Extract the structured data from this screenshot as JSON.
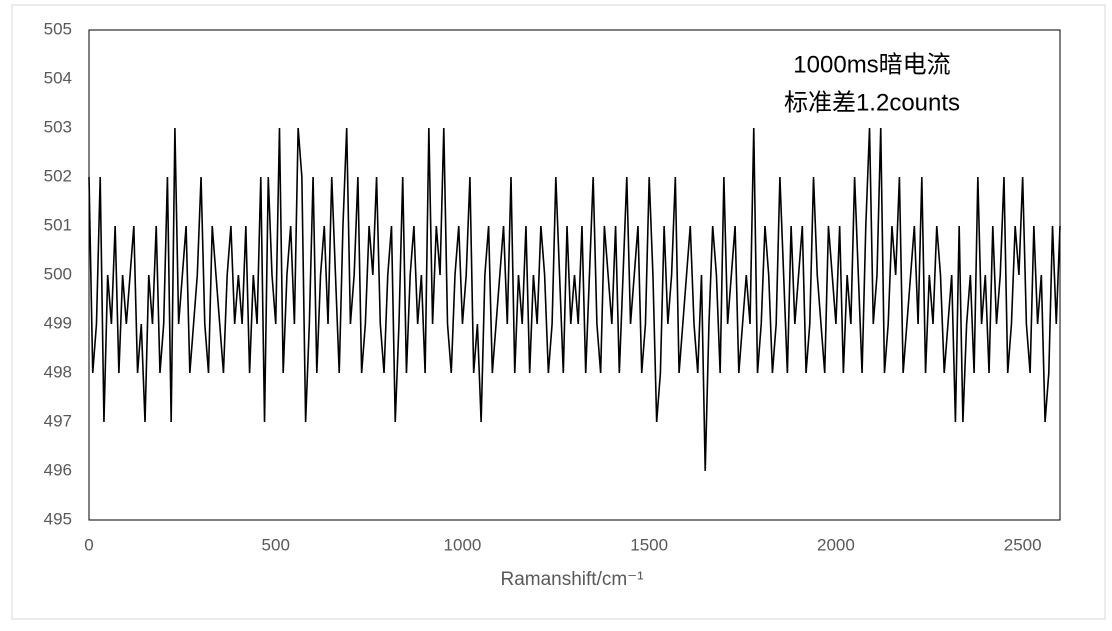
{
  "chart_data": {
    "type": "line",
    "annotations": [
      "1000ms暗电流",
      "标准差1.2counts"
    ],
    "x_label": "Ramanshift/cm⁻¹",
    "color": "#000000",
    "xlim": [
      0,
      2600
    ],
    "xticks": [
      0,
      500,
      1000,
      1500,
      2000,
      2500
    ],
    "ylim": [
      495,
      505
    ],
    "yticks": [
      495,
      496,
      497,
      498,
      499,
      500,
      501,
      502,
      503,
      504,
      505
    ],
    "x": [
      0,
      10,
      20,
      30,
      40,
      50,
      60,
      70,
      80,
      90,
      100,
      110,
      120,
      130,
      140,
      150,
      160,
      170,
      180,
      190,
      200,
      210,
      220,
      230,
      240,
      250,
      260,
      270,
      280,
      290,
      300,
      310,
      320,
      330,
      340,
      350,
      360,
      370,
      380,
      390,
      400,
      410,
      420,
      430,
      440,
      450,
      460,
      470,
      480,
      490,
      500,
      510,
      520,
      530,
      540,
      550,
      560,
      570,
      580,
      590,
      600,
      610,
      620,
      630,
      640,
      650,
      660,
      670,
      680,
      690,
      700,
      710,
      720,
      730,
      740,
      750,
      760,
      770,
      780,
      790,
      800,
      810,
      820,
      830,
      840,
      850,
      860,
      870,
      880,
      890,
      900,
      910,
      920,
      930,
      940,
      950,
      960,
      970,
      980,
      990,
      1000,
      1010,
      1020,
      1030,
      1040,
      1050,
      1060,
      1070,
      1080,
      1090,
      1100,
      1110,
      1120,
      1130,
      1140,
      1150,
      1160,
      1170,
      1180,
      1190,
      1200,
      1210,
      1220,
      1230,
      1240,
      1250,
      1260,
      1270,
      1280,
      1290,
      1300,
      1310,
      1320,
      1330,
      1340,
      1350,
      1360,
      1370,
      1380,
      1390,
      1400,
      1410,
      1420,
      1430,
      1440,
      1450,
      1460,
      1470,
      1480,
      1490,
      1500,
      1510,
      1520,
      1530,
      1540,
      1550,
      1560,
      1570,
      1580,
      1590,
      1600,
      1610,
      1620,
      1630,
      1640,
      1650,
      1660,
      1670,
      1680,
      1690,
      1700,
      1710,
      1720,
      1730,
      1740,
      1750,
      1760,
      1770,
      1780,
      1790,
      1800,
      1810,
      1820,
      1830,
      1840,
      1850,
      1860,
      1870,
      1880,
      1890,
      1900,
      1910,
      1920,
      1930,
      1940,
      1950,
      1960,
      1970,
      1980,
      1990,
      2000,
      2010,
      2020,
      2030,
      2040,
      2050,
      2060,
      2070,
      2080,
      2090,
      2100,
      2110,
      2120,
      2130,
      2140,
      2150,
      2160,
      2170,
      2180,
      2190,
      2200,
      2210,
      2220,
      2230,
      2240,
      2250,
      2260,
      2270,
      2280,
      2290,
      2300,
      2310,
      2320,
      2330,
      2340,
      2350,
      2360,
      2370,
      2380,
      2390,
      2400,
      2410,
      2420,
      2430,
      2440,
      2450,
      2460,
      2470,
      2480,
      2490,
      2500,
      2510,
      2520,
      2530,
      2540,
      2550,
      2560,
      2570,
      2580,
      2590,
      2600
    ],
    "values": [
      502,
      498,
      499,
      502,
      497,
      500,
      499,
      501,
      498,
      500,
      499,
      500,
      501,
      498,
      499,
      497,
      500,
      499,
      501,
      498,
      499,
      502,
      497,
      503,
      499,
      500,
      501,
      498,
      499,
      500,
      502,
      499,
      498,
      501,
      500,
      499,
      498,
      500,
      501,
      499,
      500,
      499,
      501,
      498,
      500,
      499,
      502,
      497,
      502,
      500,
      499,
      503,
      498,
      500,
      501,
      499,
      503,
      502,
      497,
      499,
      502,
      498,
      500,
      501,
      499,
      502,
      500,
      498,
      501,
      503,
      499,
      500,
      502,
      498,
      499,
      501,
      500,
      502,
      499,
      498,
      500,
      501,
      497,
      499,
      502,
      498,
      500,
      501,
      499,
      500,
      498,
      503,
      499,
      501,
      500,
      503,
      499,
      498,
      500,
      501,
      499,
      500,
      502,
      498,
      499,
      497,
      500,
      501,
      498,
      499,
      500,
      501,
      499,
      502,
      498,
      500,
      499,
      501,
      498,
      500,
      499,
      501,
      500,
      498,
      499,
      502,
      500,
      498,
      501,
      499,
      500,
      499,
      501,
      498,
      500,
      502,
      499,
      498,
      501,
      500,
      499,
      501,
      498,
      500,
      502,
      499,
      500,
      501,
      498,
      499,
      502,
      500,
      497,
      498,
      501,
      499,
      500,
      502,
      498,
      499,
      500,
      501,
      499,
      498,
      500,
      496,
      499,
      501,
      500,
      498,
      502,
      499,
      500,
      501,
      498,
      499,
      500,
      499,
      503,
      498,
      499,
      501,
      500,
      498,
      499,
      502,
      500,
      498,
      501,
      499,
      500,
      501,
      498,
      499,
      502,
      500,
      499,
      498,
      501,
      500,
      499,
      501,
      498,
      500,
      499,
      502,
      500,
      498,
      501,
      503,
      499,
      500,
      503,
      498,
      499,
      501,
      500,
      502,
      498,
      499,
      500,
      501,
      499,
      502,
      498,
      500,
      499,
      501,
      500,
      498,
      499,
      500,
      497,
      501,
      497,
      499,
      500,
      498,
      502,
      499,
      500,
      498,
      501,
      499,
      500,
      502,
      498,
      499,
      501,
      500,
      502,
      499,
      498,
      501,
      499,
      500,
      497,
      498,
      501,
      499,
      501
    ]
  }
}
